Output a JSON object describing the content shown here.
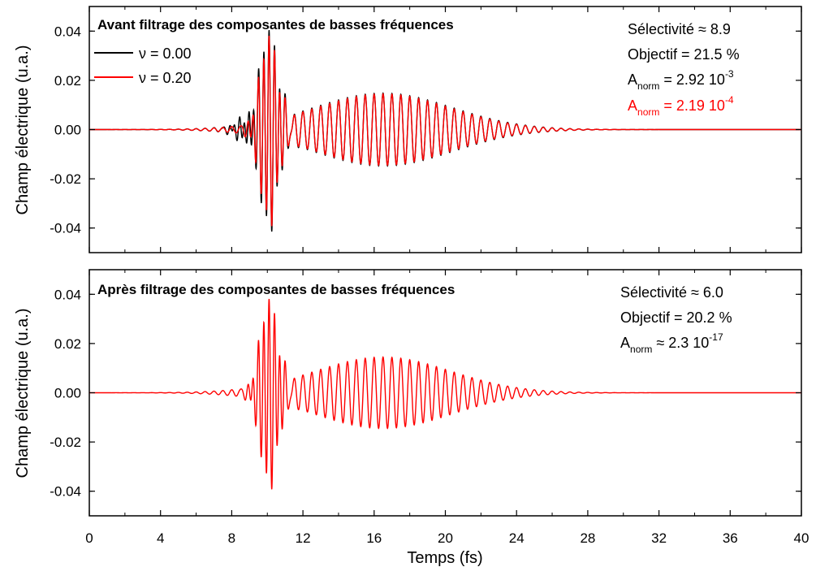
{
  "chart_data": {
    "type": "line",
    "xlabel": "Temps (fs)",
    "xlim": [
      0,
      40
    ],
    "x_ticks": [
      0,
      4,
      8,
      12,
      16,
      20,
      24,
      28,
      32,
      36,
      40
    ],
    "x_tick_labels": [
      "0",
      "4",
      "8",
      "12",
      "16",
      "20",
      "24",
      "28",
      "32",
      "36",
      "40"
    ],
    "panels": [
      {
        "title": "Avant filtrage des composantes de basses fréquences",
        "ylabel": "Champ électrique (u.a.)",
        "ylim": [
          -0.05,
          0.05
        ],
        "y_ticks": [
          -0.04,
          -0.02,
          0.0,
          0.02,
          0.04
        ],
        "y_tick_labels": [
          "-0.04",
          "-0.02",
          "0.00",
          "0.02",
          "0.04"
        ],
        "legend": [
          {
            "label": "ν = 0.00",
            "color": "#000000"
          },
          {
            "label": "ν = 0.20",
            "color": "#ff0000"
          }
        ],
        "annotations": {
          "line1": "Sélectivité ≈ 8.9",
          "line2": "Objectif = 21.5 %",
          "anorm_black": {
            "A": "A",
            "sub": "norm",
            "value": " = 2.92 10",
            "exp": "-3",
            "color": "#000000"
          },
          "anorm_red": {
            "A": "A",
            "sub": "norm",
            "value": " = 2.19 10",
            "exp": "-4",
            "color": "#ff0000"
          }
        },
        "series": [
          {
            "name": "ν = 0.00",
            "color": "#000000",
            "packets": [
              {
                "center": 10.1,
                "width": 0.75,
                "amplitude": 0.038,
                "period": 0.3
              },
              {
                "center": 16.5,
                "width": 5.5,
                "amplitude": 0.0148,
                "period": 0.5
              },
              {
                "center": 9.0,
                "width": 0.9,
                "amplitude": 0.006,
                "period": 0.28
              }
            ]
          },
          {
            "name": "ν = 0.20",
            "color": "#ff0000",
            "packets": [
              {
                "center": 10.1,
                "width": 0.72,
                "amplitude": 0.037,
                "period": 0.3
              },
              {
                "center": 16.5,
                "width": 5.4,
                "amplitude": 0.0145,
                "period": 0.5
              }
            ]
          }
        ]
      },
      {
        "title": "Après filtrage des composantes de basses fréquences",
        "ylabel": "Champ électrique (u.a.)",
        "ylim": [
          -0.05,
          0.05
        ],
        "y_ticks": [
          -0.04,
          -0.02,
          0.0,
          0.02,
          0.04
        ],
        "y_tick_labels": [
          "-0.04",
          "-0.02",
          "0.00",
          "0.02",
          "0.04"
        ],
        "annotations": {
          "line1": "Sélectivité ≈ 6.0",
          "line2": "Objectif = 20.2 %",
          "anorm": {
            "A": "A",
            "sub": "norm",
            "value": " ≈ 2.3 10",
            "exp": "-17",
            "color": "#000000"
          }
        },
        "series": [
          {
            "color": "#ff0000",
            "packets": [
              {
                "center": 10.1,
                "width": 0.72,
                "amplitude": 0.037,
                "period": 0.3
              },
              {
                "center": 16.5,
                "width": 5.4,
                "amplitude": 0.0145,
                "period": 0.5
              }
            ]
          }
        ]
      }
    ]
  }
}
